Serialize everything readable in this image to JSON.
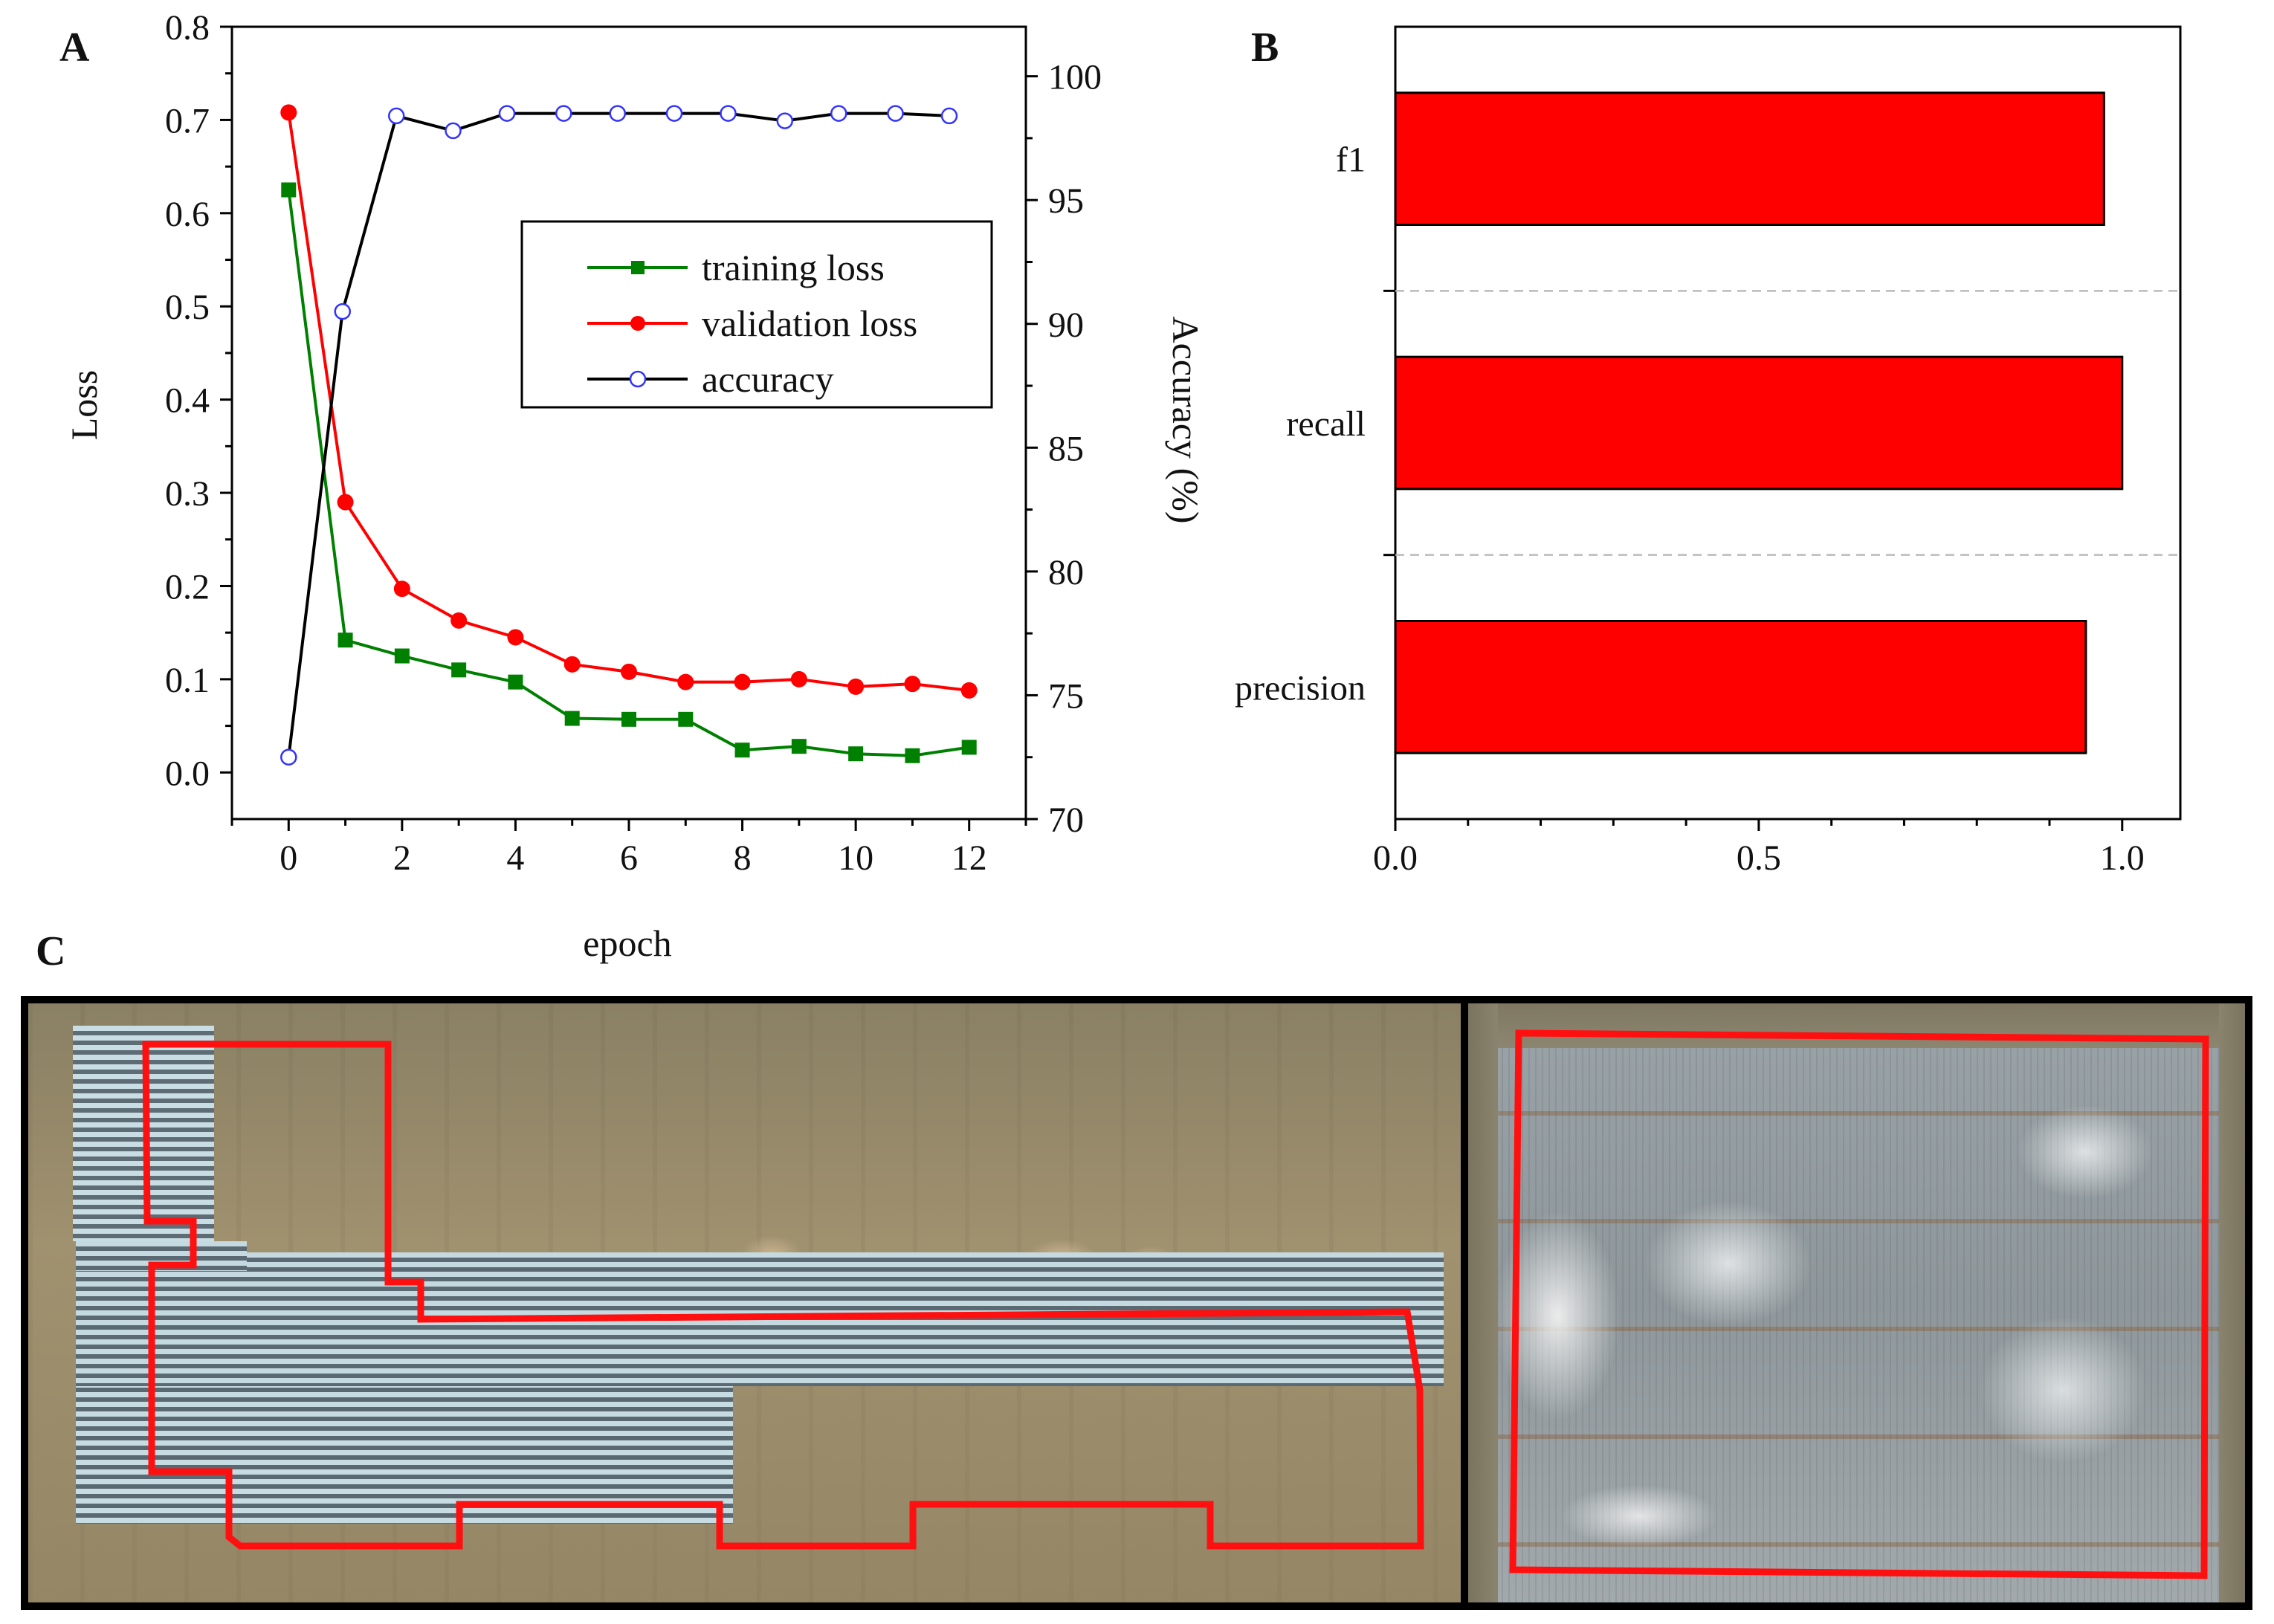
{
  "panel_a": {
    "letter": "A",
    "chart_data": {
      "type": "line",
      "xlabel": "epoch",
      "ylabel_left": "Loss",
      "ylabel_right": "Accuracy (%)",
      "xlim": [
        -1,
        13
      ],
      "ylim_left": [
        -0.05,
        0.8
      ],
      "ylim_right": [
        70,
        102
      ],
      "x_ticks": [
        0,
        2,
        4,
        6,
        8,
        10,
        12
      ],
      "y_left_ticks": [
        "0.0",
        "0.1",
        "0.2",
        "0.3",
        "0.4",
        "0.5",
        "0.6",
        "0.7",
        "0.8"
      ],
      "y_right_ticks": [
        "70",
        "75",
        "80",
        "85",
        "90",
        "95",
        "100"
      ],
      "series": [
        {
          "name": "training loss",
          "axis": "left",
          "color": "#008000",
          "marker": "square",
          "x": [
            0,
            1,
            2,
            3,
            4,
            5,
            6,
            7,
            8,
            9,
            10,
            11,
            12
          ],
          "values": [
            0.625,
            0.142,
            0.125,
            0.11,
            0.097,
            0.058,
            0.057,
            0.057,
            0.024,
            0.028,
            0.02,
            0.018,
            0.027
          ]
        },
        {
          "name": "validation loss",
          "axis": "left",
          "color": "#ff0000",
          "marker": "circle",
          "x": [
            0,
            1,
            2,
            3,
            4,
            5,
            6,
            7,
            8,
            9,
            10,
            11,
            12
          ],
          "values": [
            0.708,
            0.29,
            0.197,
            0.163,
            0.145,
            0.116,
            0.108,
            0.097,
            0.097,
            0.1,
            0.092,
            0.095,
            0.088
          ]
        },
        {
          "name": "accuracy",
          "axis": "right",
          "color": "#000000",
          "marker": "open-circle",
          "marker_color": "#3333ff",
          "x": [
            0,
            0.95,
            1.9,
            2.9,
            3.85,
            4.85,
            5.8,
            6.8,
            7.75,
            8.75,
            9.7,
            10.7,
            11.65
          ],
          "values": [
            72.5,
            90.5,
            98.4,
            97.8,
            98.5,
            98.5,
            98.5,
            98.5,
            98.5,
            98.2,
            98.5,
            98.5,
            98.4
          ]
        }
      ]
    }
  },
  "panel_b": {
    "letter": "B",
    "chart_data": {
      "type": "bar",
      "orientation": "horizontal",
      "categories": [
        "precision",
        "recall",
        "f1"
      ],
      "values": [
        0.95,
        1.0,
        0.975
      ],
      "xlim": [
        0,
        1.08
      ],
      "x_ticks": [
        "0.0",
        "0.5",
        "1.0"
      ],
      "bar_color": "#ff0000",
      "separator_lines": "dashed"
    }
  },
  "panel_c": {
    "letter": "C",
    "colors": {
      "outline": "#ff1010",
      "frame": "#000000"
    }
  }
}
